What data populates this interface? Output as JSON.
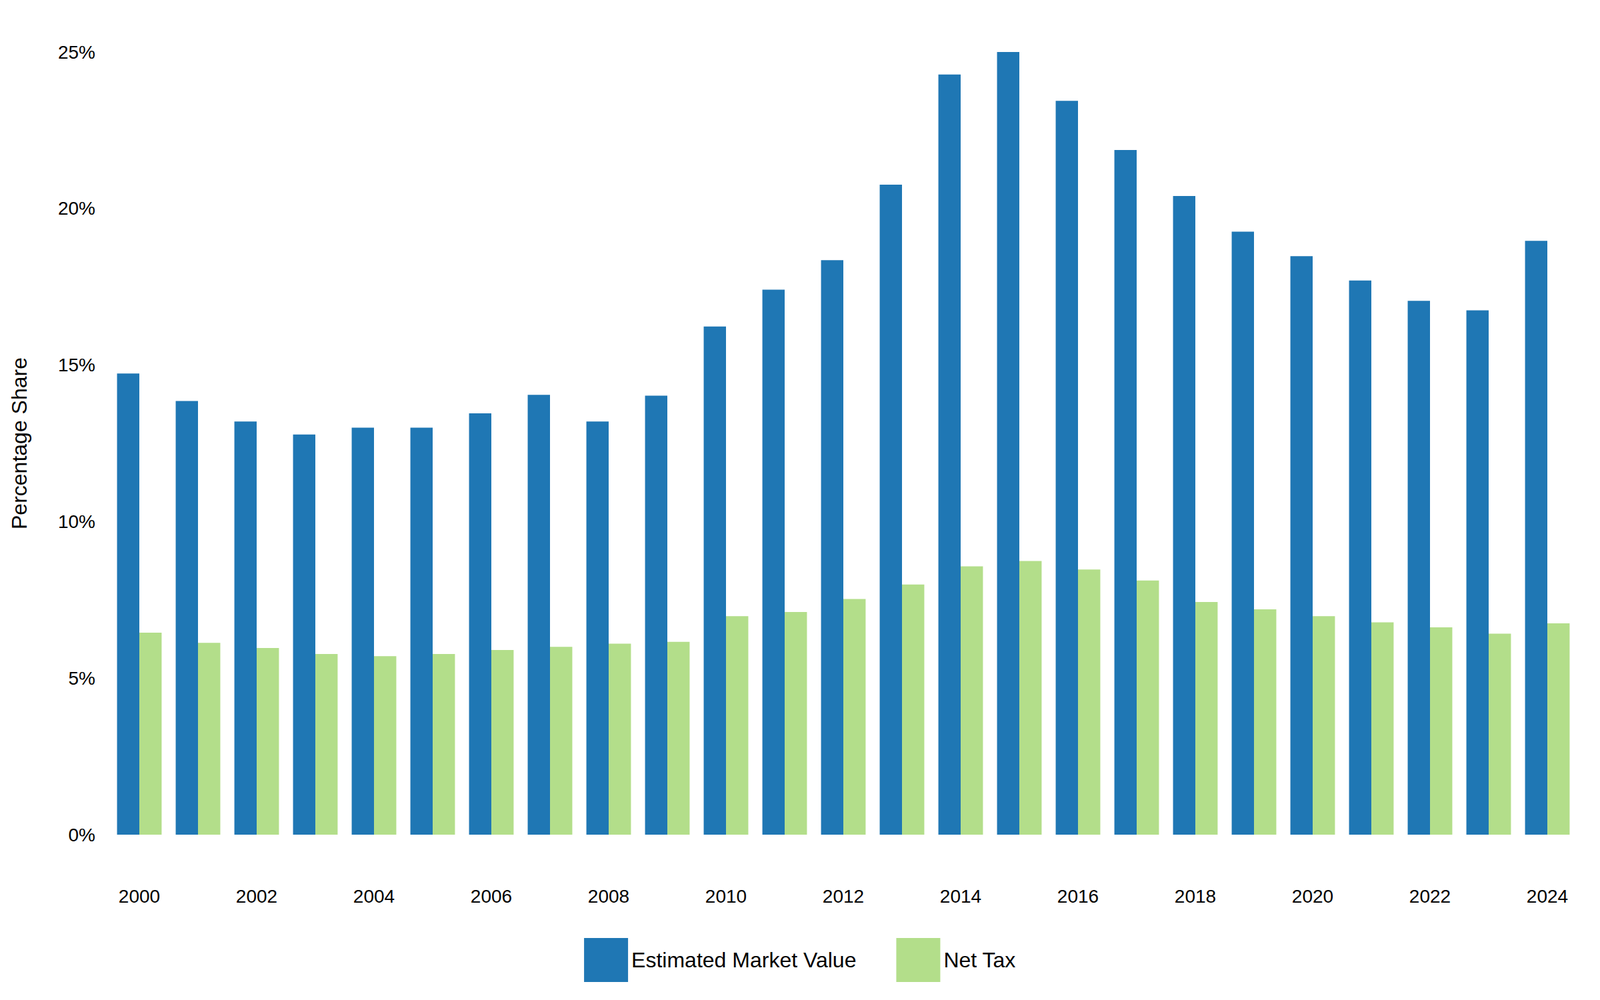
{
  "chart_data": {
    "type": "bar",
    "y_label": "Percentage Share",
    "categories": [
      "2000",
      null,
      "2002",
      null,
      "2004",
      null,
      "2006",
      null,
      "2008",
      null,
      "2010",
      null,
      "2012",
      null,
      "2014",
      null,
      "2016",
      null,
      "2018",
      null,
      "2020",
      null,
      "2022",
      null,
      "2024"
    ],
    "series": [
      {
        "name": "Estimated Market Value",
        "color": "#1f77b4",
        "values": [
          14.73,
          13.85,
          13.2,
          12.78,
          13.0,
          13.0,
          13.46,
          14.05,
          13.2,
          14.02,
          16.23,
          17.41,
          18.35,
          20.76,
          24.28,
          25.0,
          23.44,
          21.87,
          20.4,
          19.26,
          18.48,
          17.7,
          17.05,
          16.75,
          18.97
        ]
      },
      {
        "name": "Net Tax",
        "color": "#b3de8a",
        "values": [
          6.45,
          6.13,
          5.96,
          5.77,
          5.7,
          5.77,
          5.9,
          6.0,
          6.1,
          6.16,
          6.98,
          7.11,
          7.53,
          7.99,
          8.57,
          8.74,
          8.47,
          8.12,
          7.43,
          7.2,
          6.98,
          6.78,
          6.62,
          6.42,
          6.75
        ]
      }
    ],
    "ylim": [
      0,
      25
    ],
    "yticks": [
      {
        "value": 0,
        "label": "0%"
      },
      {
        "value": 5,
        "label": "5%"
      },
      {
        "value": 10,
        "label": "10%"
      },
      {
        "value": 15,
        "label": "15%"
      },
      {
        "value": 20,
        "label": "20%"
      },
      {
        "value": 25,
        "label": "25%"
      }
    ],
    "grid": false,
    "legend": "bottom"
  }
}
